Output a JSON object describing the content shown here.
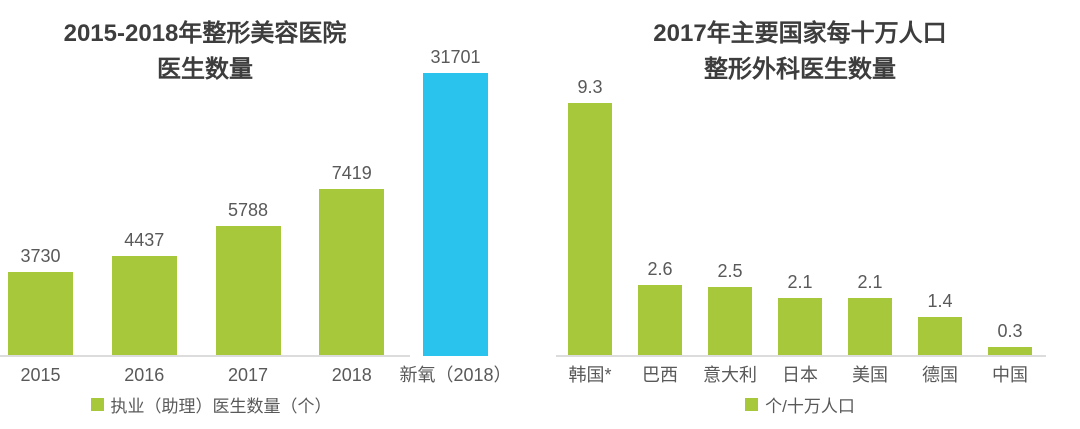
{
  "colors": {
    "bar_green": "#a8c83c",
    "bar_blue": "#29c3ee",
    "title_text": "#3d3d3d",
    "label_text": "#595959",
    "axis_line": "#dcdcdc",
    "background": "#ffffff"
  },
  "chart_data": [
    {
      "type": "bar",
      "title": "2015-2018年整形美容医院医生数量",
      "title_lines": [
        "2015-2018年整形美容医院",
        "医生数量"
      ],
      "categories": [
        "2015",
        "2016",
        "2017",
        "2018",
        "新氧（2018）"
      ],
      "values": [
        3730,
        4437,
        5788,
        7419,
        31701
      ],
      "value_labels": [
        "3730",
        "4437",
        "5788",
        "7419",
        "31701"
      ],
      "legend": "执业（助理）医生数量（个）",
      "legend_position": "bottom",
      "grid": false,
      "ylim": [
        0,
        12600
      ],
      "highlight_index": 4,
      "note": "highlighted bar 31701 is clipped at the top of the plot area"
    },
    {
      "type": "bar",
      "title": "2017年主要国家每十万人口整形外科医生数量",
      "title_lines": [
        "2017年主要国家每十万人口",
        "整形外科医生数量"
      ],
      "categories": [
        "韩国*",
        "巴西",
        "意大利",
        "日本",
        "美国",
        "德国",
        "中国"
      ],
      "values": [
        9.3,
        2.6,
        2.5,
        2.1,
        2.1,
        1.4,
        0.3
      ],
      "value_labels": [
        "9.3",
        "2.6",
        "2.5",
        "2.1",
        "2.1",
        "1.4",
        "0.3"
      ],
      "legend": "个/十万人口",
      "legend_position": "bottom",
      "grid": false,
      "ylim": [
        0,
        9.3
      ],
      "highlight_index": null
    }
  ]
}
